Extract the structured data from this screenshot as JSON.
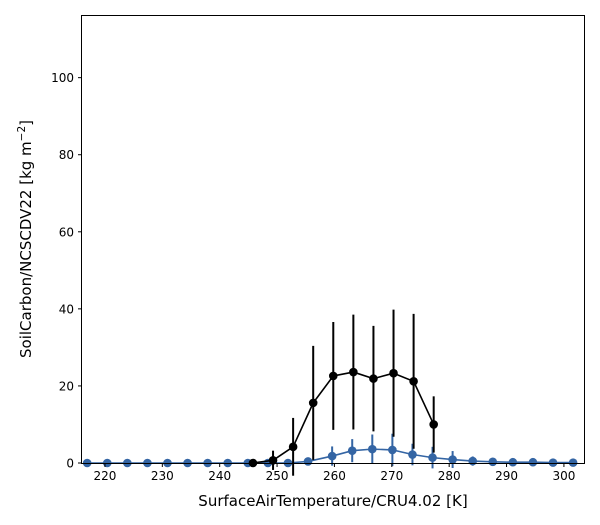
{
  "chart_data": {
    "type": "line",
    "title": "",
    "xlabel": "SurfaceAirTemperature/CRU4.02 [K]",
    "ylabel_main": "SoilCarbon/NCSCDV22 [kg m",
    "ylabel_sup": "−2",
    "ylabel_end": "]",
    "xlim": [
      216,
      303.5
    ],
    "ylim": [
      0,
      116
    ],
    "xticks": [
      220,
      230,
      240,
      250,
      260,
      270,
      280,
      290,
      300
    ],
    "yticks": [
      0,
      20,
      40,
      60,
      80,
      100
    ],
    "grid": false,
    "legend": "none",
    "series": [
      {
        "color": "#3465a4",
        "x": [
          216.9,
          220.4,
          223.9,
          227.4,
          230.9,
          234.4,
          237.9,
          241.4,
          244.9,
          248.4,
          251.9,
          255.4,
          259.6,
          263.1,
          266.6,
          270.1,
          273.6,
          277.1,
          280.6,
          284.1,
          287.6,
          291.1,
          294.6,
          298.1,
          301.6
        ],
        "y": [
          0,
          0,
          0,
          0,
          0,
          0,
          0,
          0,
          0,
          0,
          0,
          0.4,
          1.8,
          3.2,
          3.6,
          3.4,
          2.2,
          1.4,
          0.9,
          0.5,
          0.3,
          0.2,
          0.2,
          0.1,
          0.1
        ],
        "err": [
          0,
          0,
          0,
          0,
          0,
          0,
          0,
          0,
          0,
          0,
          0,
          0.4,
          2.5,
          3.0,
          3.8,
          4.2,
          2.8,
          2.8,
          2.2,
          1.2,
          0.6,
          0.5,
          0.8,
          0.3,
          0.3
        ]
      },
      {
        "color": "#000000",
        "x": [
          245.8,
          249.3,
          252.8,
          256.3,
          259.8,
          263.3,
          266.8,
          270.3,
          273.8,
          277.3
        ],
        "y": [
          0,
          0.7,
          4.2,
          15.6,
          22.6,
          23.6,
          21.9,
          23.3,
          21.2,
          10.0
        ],
        "err": [
          0,
          2.5,
          7.5,
          14.8,
          14.0,
          14.9,
          13.7,
          16.5,
          17.5,
          7.3
        ]
      }
    ]
  }
}
